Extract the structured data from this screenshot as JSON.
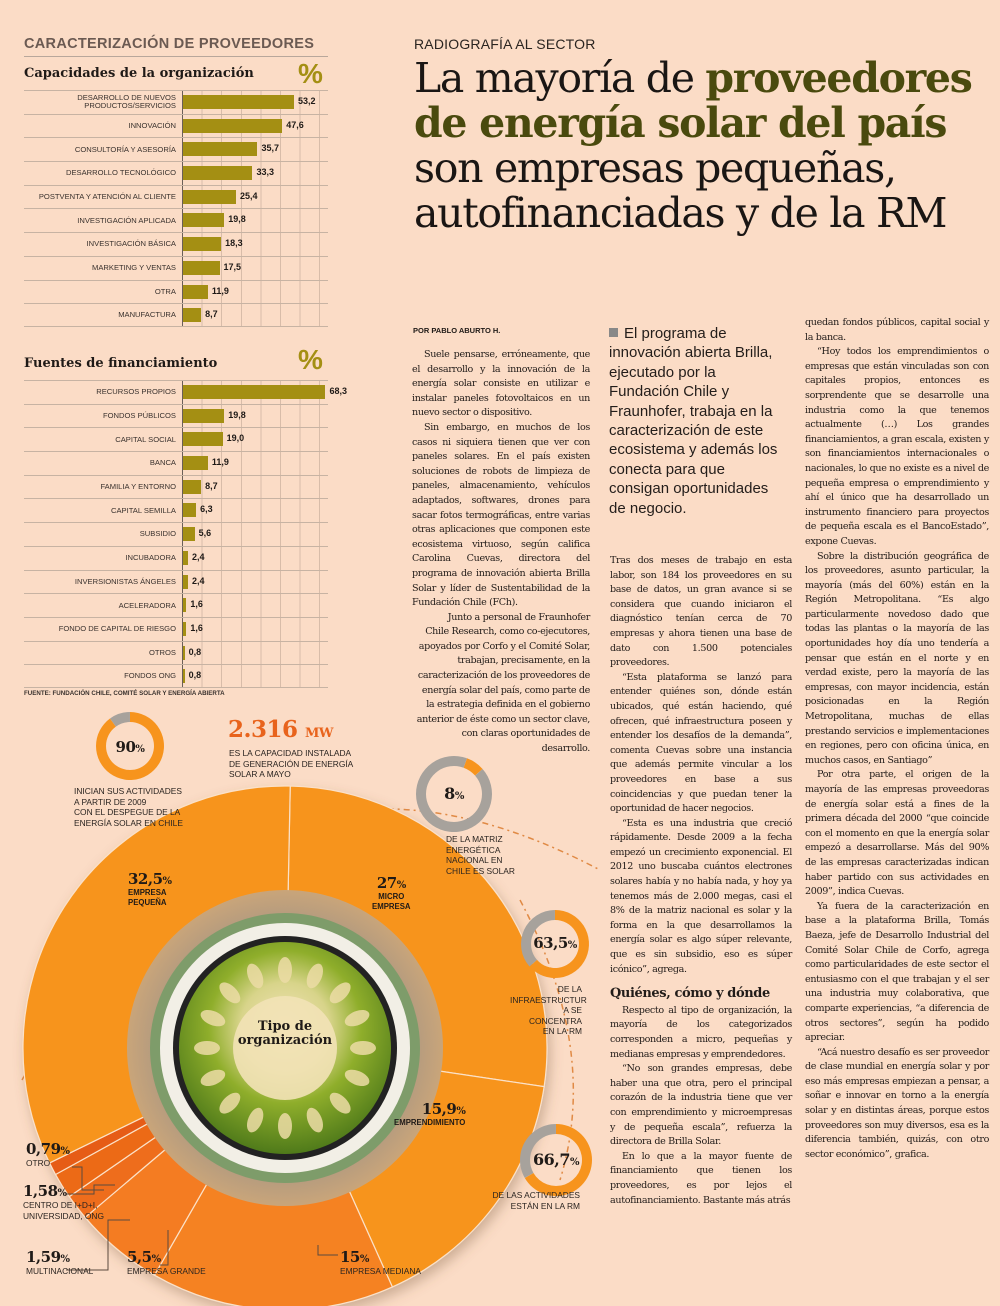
{
  "section_title": "CARACTERIZACIÓN DE PROVEEDORES",
  "percent_symbol": "%",
  "chart_data": [
    {
      "type": "bar",
      "orientation": "horizontal",
      "title": "Capacidades de la organización",
      "unit": "%",
      "categories": [
        "DESARROLLO DE NUEVOS PRODUCTOS/SERVICIOS",
        "INNOVACIÓN",
        "CONSULTORÍA Y ASESORÍA",
        "DESARROLLO TECNOLÓGICO",
        "POSTVENTA Y ATENCIÓN AL CLIENTE",
        "INVESTIGACIÓN APLICADA",
        "INVESTIGACIÓN BÁSICA",
        "MARKETING Y VENTAS",
        "OTRA",
        "MANUFACTURA"
      ],
      "values": [
        53.2,
        47.6,
        35.7,
        33.3,
        25.4,
        19.8,
        18.3,
        17.5,
        11.9,
        8.7
      ],
      "value_labels": [
        "53,2",
        "47,6",
        "35,7",
        "33,3",
        "25,4",
        "19,8",
        "18,3",
        "17,5",
        "11,9",
        "8,7"
      ],
      "xlim": [
        0,
        70
      ],
      "grid": true,
      "color": "#a48f13"
    },
    {
      "type": "bar",
      "orientation": "horizontal",
      "title": "Fuentes de financiamiento",
      "unit": "%",
      "categories": [
        "RECURSOS PROPIOS",
        "FONDOS PÚBLICOS",
        "CAPITAL SOCIAL",
        "BANCA",
        "FAMILIA Y ENTORNO",
        "CAPITAL SEMILLA",
        "SUBSIDIO",
        "INCUBADORA",
        "INVERSIONISTAS ÁNGELES",
        "ACELERADORA",
        "FONDO DE CAPITAL DE RIESGO",
        "OTROS",
        "FONDOS ONG"
      ],
      "values": [
        68.3,
        19.8,
        19.0,
        11.9,
        8.7,
        6.3,
        5.6,
        2.4,
        2.4,
        1.6,
        1.6,
        0.8,
        0.8
      ],
      "value_labels": [
        "68,3",
        "19,8",
        "19,0",
        "11,9",
        "8,7",
        "6,3",
        "5,6",
        "2,4",
        "2,4",
        "1,6",
        "1,6",
        "0,8",
        "0,8"
      ],
      "xlim": [
        0,
        70
      ],
      "grid": true,
      "color": "#a48f13"
    },
    {
      "type": "pie",
      "title": "Tipo de organización",
      "categories": [
        "EMPRESA PEQUEÑA",
        "MICRO EMPRESA",
        "EMPRENDIMIENTO",
        "EMPRESA MEDIANA",
        "EMPRESA GRANDE",
        "MULTINACIONAL",
        "CENTRO DE I+D+I, UNIVERSIDAD, ONG",
        "OTRO"
      ],
      "values": [
        32.5,
        27,
        15.9,
        15,
        5.5,
        1.59,
        1.58,
        0.79
      ],
      "value_labels": [
        "32,5%",
        "27%",
        "15,9%",
        "15%",
        "5,5%",
        "1,59%",
        "1,58%",
        "0,79%"
      ],
      "colors": [
        "#f7941d",
        "#f7941d",
        "#f7941d",
        "#f58220",
        "#f47b20",
        "#ee6d1a",
        "#ec6a18",
        "#e65c14"
      ]
    },
    {
      "type": "pie",
      "title": "Inician sus actividades a partir de 2009",
      "values": [
        90,
        10
      ],
      "value_labels": [
        "90%"
      ],
      "colors": [
        "#f7941d",
        "#a7a29c"
      ]
    },
    {
      "type": "pie",
      "title": "De la matriz energética nacional en Chile es solar",
      "values": [
        8,
        92
      ],
      "value_labels": [
        "8%"
      ],
      "colors": [
        "#f7941d",
        "#a7a29c"
      ]
    },
    {
      "type": "pie",
      "title": "De la infraestructura se concentra en la RM",
      "values": [
        63.5,
        36.5
      ],
      "value_labels": [
        "63,5%"
      ],
      "colors": [
        "#f7941d",
        "#a7a29c"
      ]
    },
    {
      "type": "pie",
      "title": "De las actividades están en la RM",
      "values": [
        66.7,
        33.3
      ],
      "value_labels": [
        "66,7%"
      ],
      "colors": [
        "#f7941d",
        "#a7a29c"
      ]
    }
  ],
  "source": "FUENTE: FUNDACIÓN CHILE, COMITÉ SOLAR Y ENERGÍA ABIERTA",
  "infographic": {
    "donut_90": {
      "value": "90",
      "unit": "%",
      "caption": [
        "INICIAN SUS ACTIVIDADES",
        "A PARTIR DE 2009",
        "CON EL DESPEGUE DE LA",
        "ENERGÍA SOLAR EN CHILE"
      ]
    },
    "capacity": {
      "value": "2.316",
      "unit": "MW",
      "caption": [
        "ES LA CAPACIDAD INSTALADA",
        "DE GENERACIÓN DE ENERGÍA",
        "SOLAR A MAYO"
      ]
    },
    "donut_8": {
      "value": "8",
      "unit": "%",
      "caption": [
        "DE LA MATRIZ",
        "ENERGÉTICA",
        "NACIONAL EN",
        "CHILE ES SOLAR"
      ]
    },
    "donut_635": {
      "value": "63,5",
      "unit": "%",
      "caption": [
        "DE LA",
        "INFRAESTRUCTUR",
        "A SE CONCENTRA",
        "EN LA RM"
      ]
    },
    "donut_667": {
      "value": "66,7",
      "unit": "%",
      "caption": [
        "DE LAS ACTIVIDADES",
        "ESTÁN EN LA RM"
      ]
    },
    "center_title": [
      "Tipo de",
      "organización"
    ],
    "segments": [
      {
        "value": "32,5",
        "unit": "%",
        "label": [
          "EMPRESA",
          "PEQUEÑA"
        ]
      },
      {
        "value": "27",
        "unit": "%",
        "label": [
          "MICRO",
          "EMPRESA"
        ]
      },
      {
        "value": "15,9",
        "unit": "%",
        "label": [
          "EMPRENDIMIENTO"
        ]
      },
      {
        "value": "15",
        "unit": "%",
        "label": [
          "EMPRESA MEDIANA"
        ]
      },
      {
        "value": "5,5",
        "unit": "%",
        "label": [
          "EMPRESA GRANDE"
        ]
      },
      {
        "value": "1,59",
        "unit": "%",
        "label": [
          "MULTINACIONAL"
        ]
      },
      {
        "value": "1,58",
        "unit": "%",
        "label": [
          "CENTRO DE I+D+I,",
          "UNIVERSIDAD, ONG"
        ]
      },
      {
        "value": "0,79",
        "unit": "%",
        "label": [
          "OTRO"
        ]
      }
    ]
  },
  "article": {
    "kicker": "RADIOGRAFÍA AL SECTOR",
    "headline": {
      "part1": "La mayoría de ",
      "accent": "proveedores de energía solar del país",
      "part2": " son empresas pequeñas, autofinanciadas y de la RM"
    },
    "byline": "POR PABLO ABURTO H.",
    "lede": "El programa de innovación abierta Brilla, ejecutado por la Fundación Chile y Fraunhofer, trabaja en la caracterización de este ecosistema y además los conecta para que consigan oportunidades de negocio.",
    "col1": [
      "Suele pensarse, erróneamente, que el desarrollo y la innovación de la energía solar consiste en utilizar e instalar paneles fotovoltaicos en un nuevo sector o dispositivo.",
      "Sin embargo, en muchos de los casos ni siquiera tienen que ver con paneles solares. En el país existen soluciones de robots de limpieza de paneles, almacenamiento, vehículos adaptados, softwares, drones para sacar fotos termográficas, entre varias otras aplicaciones que componen este ecosistema virtuoso, según califica Carolina Cuevas, directora del programa de innovación abierta Brilla Solar y líder de Sustentabilidad de la Fundación Chile (FCh).",
      "Junto a personal de Fraunhofer Chile Research, como co-ejecutores, apoyados por Corfo y el Comité Solar, trabajan, precisamente, en la caracterización de los proveedores de energía solar del país, como parte de la estrategia definida en el gobierno anterior de éste como un sector clave, con claras oportunidades de desarrollo."
    ],
    "col2": [
      "Tras dos meses de trabajo en esta labor,  son 184 los proveedores en su base de datos, un gran avance si se considera que cuando iniciaron el diagnóstico tenían cerca de 70 empresas y ahora tienen una base de dato con 1.500 potenciales proveedores.",
      "“Esta plataforma se lanzó para entender quiénes son, dónde están ubicados, qué están haciendo, qué ofrecen, qué infraestructura poseen y entender los desafíos de la demanda”, comenta Cuevas sobre una instancia que además permite vincular a los proveedores en base a sus coincidencias y que puedan tener la oportunidad de hacer negocios.",
      "“Esta es una industria que creció rápidamente. Desde 2009 a la fecha empezó un crecimiento exponencial. El 2012 uno buscaba cuántos electrones solares había y no había nada, y hoy ya tenemos más de 2.000 megas, casi el 8% de la matriz nacional es solar y la forma en la que desarrollamos la energía solar es algo súper relevante, que es sin subsidio, eso es súper icónico”, agrega."
    ],
    "subhead": "Quiénes, cómo y dónde",
    "col2b": [
      "Respecto al tipo de organización, la mayoría de los categorizados corresponden a micro, pequeñas y medianas empresas y emprendedores.",
      "“No son grandes empresas, debe haber una que otra, pero el principal corazón de la industria tiene que ver con emprendimiento y microempresas y de pequeña escala”, refuerza la directora de Brilla Solar.",
      "En lo que a la mayor fuente de financiamiento que tienen los proveedores, es por lejos el autofinanciamiento. Bastante más atrás"
    ],
    "col3_lead": "quedan fondos públicos, capital social y la banca.",
    "col3": [
      "“Hoy todos los emprendimientos o empresas que están vinculadas son con capitales propios, entonces es sorprendente que se desarrolle una industria como la que tenemos actualmente (…) Los grandes financiamientos, a gran escala, existen y son financiamientos internacionales o nacionales, lo que no existe es a nivel de pequeña empresa o emprendimiento y ahí el único que ha desarrollado un instrumento financiero para proyectos de pequeña escala es el BancoEstado”, expone Cuevas.",
      "Sobre la distribución geográfica de los proveedores, asunto particular, la mayoría (más del 60%) están en la Región Metropolitana. “Es algo particularmente novedoso dado que todas las plantas o la mayoría de las oportunidades hoy día uno tendería a pensar que están en el norte y en verdad existe, pero la mayoría de las empresas, con mayor incidencia, están posicionadas en la Región Metropolitana, muchas de ellas prestando servicios e implementaciones en regiones, pero con oficina única, en muchos casos, en Santiago”",
      "Por otra parte, el origen de la mayoría de las empresas proveedoras de energía solar está a fines de la primera década del 2000 “que coincide con el momento en que la energía solar empezó a desarrollarse. Más del 90% de las empresas caracterizadas indican haber partido con sus actividades en 2009”, indica Cuevas.",
      "Ya fuera de la caracterización en base a la plataforma Brilla, Tomás Baeza, jefe de Desarrollo Industrial del Comité Solar Chile de Corfo, agrega como particularidades de este sector el entusiasmo con el que trabajan y el ser una industria muy colaborativa, que comparte experiencias, “a diferencia de otros sectores”, según ha podido apreciar.",
      "“Acá nuestro desafío es ser proveedor de clase mundial en energía solar y por eso más empresas empiezan a pensar, a soñar e innovar en torno a la energía solar y en distintas áreas, porque estos proveedores son muy diversos, esa es la diferencia también, quizás, con otro sector económico”, grafica."
    ]
  }
}
